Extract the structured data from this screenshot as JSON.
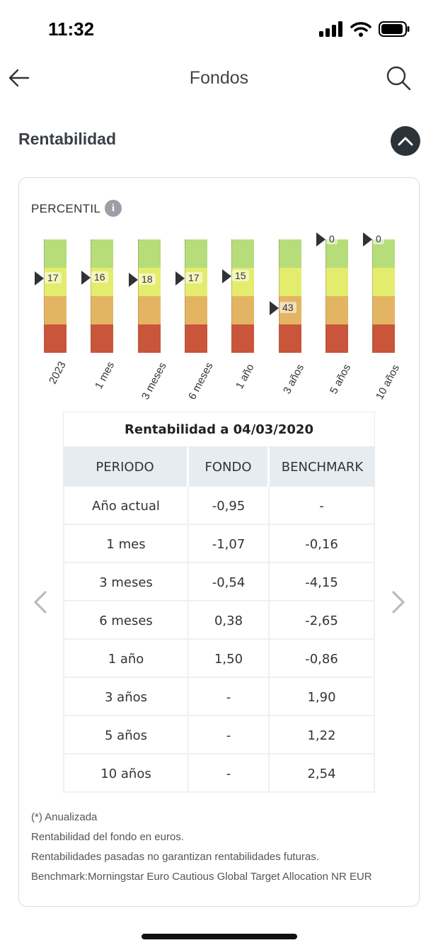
{
  "status_bar": {
    "time": "11:32"
  },
  "nav": {
    "title": "Fondos"
  },
  "section": {
    "title": "Rentabilidad"
  },
  "percentil": {
    "label": "PERCENTIL",
    "colors": {
      "green": "#b6dd7a",
      "yellow": "#e4ec6e",
      "orange": "#e3b563",
      "red": "#c9553a"
    }
  },
  "chart_data": {
    "type": "bar",
    "categories": [
      "2023",
      "1 mes",
      "3 meses",
      "6 meses",
      "1 año",
      "3 años",
      "5 años",
      "10 años"
    ],
    "values": [
      17,
      16,
      18,
      17,
      15,
      43,
      0,
      0
    ],
    "ylim": [
      0,
      100
    ]
  },
  "table": {
    "caption": "Rentabilidad a 04/03/2020",
    "headers": [
      "PERIODO",
      "FONDO",
      "BENCHMARK"
    ],
    "rows": [
      [
        "Año actual",
        "-0,95",
        "-"
      ],
      [
        "1 mes",
        "-1,07",
        "-0,16"
      ],
      [
        "3 meses",
        "-0,54",
        "-4,15"
      ],
      [
        "6 meses",
        "0,38",
        "-2,65"
      ],
      [
        "1 año",
        "1,50",
        "-0,86"
      ],
      [
        "3 años",
        "-",
        "1,90"
      ],
      [
        "5 años",
        "-",
        "1,22"
      ],
      [
        "10 años",
        "-",
        "2,54"
      ]
    ]
  },
  "footnotes": {
    "annualized": "(*) Anualizada",
    "currency": "Rentabilidad del fondo en euros.",
    "disclaimer": "Rentabilidades pasadas no garantizan rentabilidades futuras.",
    "benchmark": "Benchmark:Morningstar Euro Cautious Global Target Allocation NR EUR"
  }
}
